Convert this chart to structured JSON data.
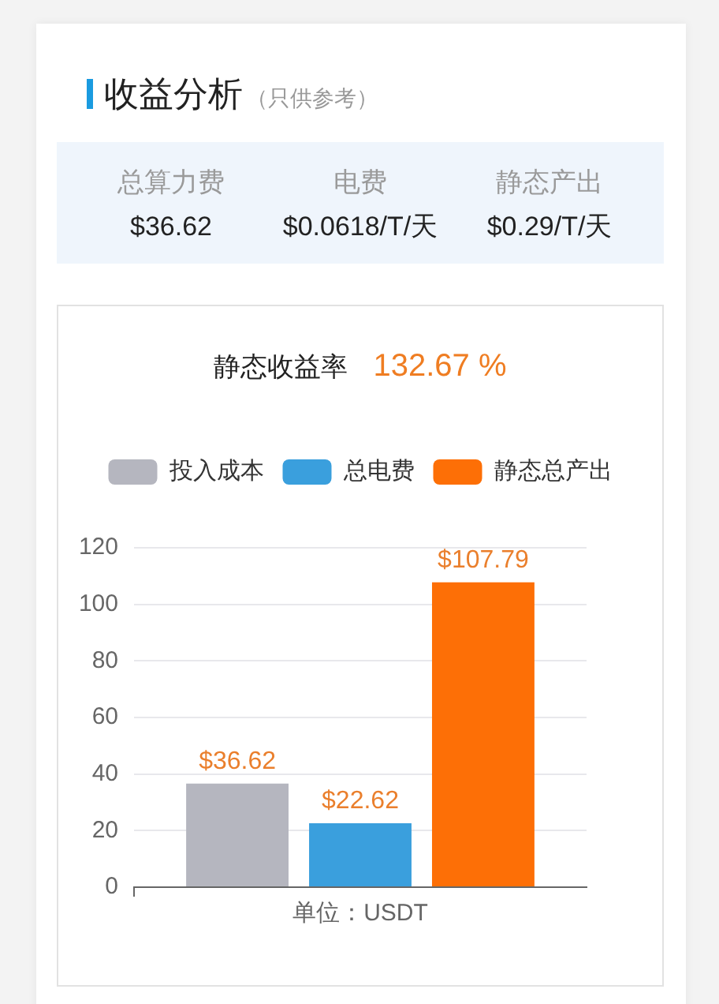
{
  "chart_data": {
    "type": "bar",
    "title": "收益分析",
    "subtitle": "（只供参考）",
    "annotations": [
      "总算力费",
      "$36.62",
      "电费",
      "$0.0618/T/天",
      "静态产出",
      "$0.29/T/天",
      "静态收益率",
      "132.67 %"
    ],
    "categories": [
      null
    ],
    "xlabel": "单位：USDT",
    "series": [
      {
        "name": "投入成本",
        "color": "#b5b6bf",
        "values": [
          36.62
        ],
        "value_labels": [
          "$36.62"
        ]
      },
      {
        "name": "总电费",
        "color": "#3a9fdd",
        "values": [
          22.62
        ],
        "value_labels": [
          "$22.62"
        ]
      },
      {
        "name": "静态总产出",
        "color": "#fd6f06",
        "values": [
          107.79
        ],
        "value_labels": [
          "$107.79"
        ]
      }
    ],
    "ylim": [
      0,
      120
    ],
    "yticks": [
      0,
      20,
      40,
      60,
      80,
      100,
      120
    ],
    "grid": "y",
    "legend": "top"
  }
}
